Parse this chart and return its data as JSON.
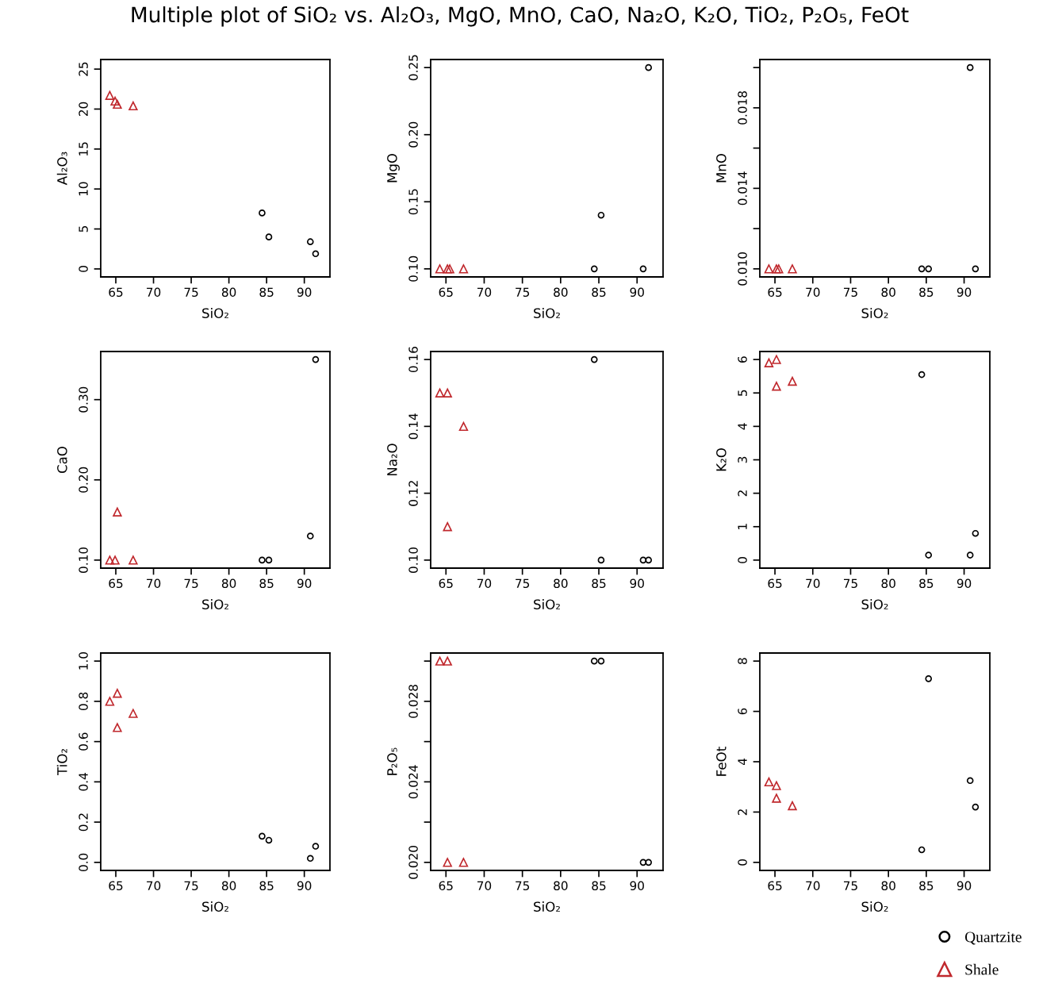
{
  "chart_data": [
    {
      "type": "scatter",
      "title": "Multiple plot of SiO₂ vs. Al₂O₃, MgO, MnO, CaO, Na₂O, K₂O, TiO₂, P₂O₅, FeOt",
      "xlabel": "SiO₂",
      "ylabel": "Al₂O₃",
      "xlim": [
        63.0,
        93.4
      ],
      "xticks": [
        65,
        70,
        75,
        80,
        85,
        90
      ],
      "ylim": [
        -1.0,
        26.2
      ],
      "yticks": [
        0,
        5,
        10,
        15,
        20,
        25
      ],
      "grid": false,
      "series": [
        {
          "color": "#000000",
          "marker": "circle",
          "x": [
            84.4,
            85.3,
            90.8,
            91.5
          ],
          "values": [
            7.0,
            4.0,
            3.4,
            1.9
          ]
        },
        {
          "color": "#c0282d",
          "marker": "triangle",
          "x": [
            64.2,
            64.9,
            65.2,
            67.3
          ],
          "values": [
            21.7,
            21.0,
            20.6,
            20.4
          ]
        }
      ]
    },
    {
      "type": "scatter",
      "xlabel": "SiO₂",
      "ylabel": "MgO",
      "xlim": [
        63.0,
        93.4
      ],
      "xticks": [
        65,
        70,
        75,
        80,
        85,
        90
      ],
      "ylim": [
        0.094,
        0.256
      ],
      "yticks": [
        {
          "value": 0.1,
          "label": "0.10"
        },
        {
          "value": 0.15,
          "label": "0.15"
        },
        {
          "value": 0.2,
          "label": "0.20"
        },
        {
          "value": 0.25,
          "label": "0.25"
        }
      ],
      "grid": false,
      "series": [
        {
          "color": "#000000",
          "marker": "circle",
          "x": [
            84.4,
            85.3,
            90.8,
            91.5
          ],
          "values": [
            0.1,
            0.14,
            0.1,
            0.25
          ]
        },
        {
          "color": "#c0282d",
          "marker": "triangle",
          "x": [
            64.2,
            65.2,
            65.5,
            67.3
          ],
          "values": [
            0.1,
            0.1,
            0.1,
            0.1
          ]
        }
      ]
    },
    {
      "type": "scatter",
      "xlabel": "SiO₂",
      "ylabel": "MnO",
      "xlim": [
        63.0,
        93.4
      ],
      "xticks": [
        65,
        70,
        75,
        80,
        85,
        90
      ],
      "ylim": [
        0.0096,
        0.0204
      ],
      "yticks": [
        {
          "value": 0.01,
          "label": "0.010"
        },
        {
          "value": 0.012,
          "label": null
        },
        {
          "value": 0.014,
          "label": "0.014"
        },
        {
          "value": 0.016,
          "label": null
        },
        {
          "value": 0.018,
          "label": "0.018"
        },
        {
          "value": 0.02,
          "label": null
        }
      ],
      "grid": false,
      "series": [
        {
          "color": "#000000",
          "marker": "circle",
          "x": [
            84.4,
            85.3,
            90.8,
            91.5
          ],
          "values": [
            0.01,
            0.01,
            0.02,
            0.01
          ]
        },
        {
          "color": "#c0282d",
          "marker": "triangle",
          "x": [
            64.2,
            65.2,
            65.5,
            67.3
          ],
          "values": [
            0.01,
            0.01,
            0.01,
            0.01
          ]
        }
      ]
    },
    {
      "type": "scatter",
      "xlabel": "SiO₂",
      "ylabel": "CaO",
      "xlim": [
        63.0,
        93.4
      ],
      "xticks": [
        65,
        70,
        75,
        80,
        85,
        90
      ],
      "ylim": [
        0.09,
        0.36
      ],
      "yticks": [
        {
          "value": 0.1,
          "label": "0.10"
        },
        {
          "value": 0.2,
          "label": "0.20"
        },
        {
          "value": 0.3,
          "label": "0.30"
        }
      ],
      "grid": false,
      "series": [
        {
          "color": "#000000",
          "marker": "circle",
          "x": [
            84.4,
            85.3,
            90.8,
            91.5
          ],
          "values": [
            0.1,
            0.1,
            0.13,
            0.35
          ]
        },
        {
          "color": "#c0282d",
          "marker": "triangle",
          "x": [
            64.2,
            64.9,
            65.2,
            67.3
          ],
          "values": [
            0.1,
            0.1,
            0.16,
            0.1
          ]
        }
      ]
    },
    {
      "type": "scatter",
      "xlabel": "SiO₂",
      "ylabel": "Na₂O",
      "xlim": [
        63.0,
        93.4
      ],
      "xticks": [
        65,
        70,
        75,
        80,
        85,
        90
      ],
      "ylim": [
        0.0976,
        0.1624
      ],
      "yticks": [
        {
          "value": 0.1,
          "label": "0.10"
        },
        {
          "value": 0.12,
          "label": "0.12"
        },
        {
          "value": 0.14,
          "label": "0.14"
        },
        {
          "value": 0.16,
          "label": "0.16"
        }
      ],
      "grid": false,
      "series": [
        {
          "color": "#000000",
          "marker": "circle",
          "x": [
            84.4,
            85.3,
            90.8,
            91.5
          ],
          "values": [
            0.16,
            0.1,
            0.1,
            0.1
          ]
        },
        {
          "color": "#c0282d",
          "marker": "triangle",
          "x": [
            64.2,
            65.2,
            65.2,
            67.3
          ],
          "values": [
            0.15,
            0.15,
            0.11,
            0.14
          ]
        }
      ]
    },
    {
      "type": "scatter",
      "xlabel": "SiO₂",
      "ylabel": "K₂O",
      "xlim": [
        63.0,
        93.4
      ],
      "xticks": [
        65,
        70,
        75,
        80,
        85,
        90
      ],
      "ylim": [
        -0.24,
        6.24
      ],
      "yticks": [
        0,
        1,
        2,
        3,
        4,
        5,
        6
      ],
      "grid": false,
      "series": [
        {
          "color": "#000000",
          "marker": "circle",
          "x": [
            84.4,
            85.3,
            90.8,
            91.5
          ],
          "values": [
            5.55,
            0.15,
            0.15,
            0.8
          ]
        },
        {
          "color": "#c0282d",
          "marker": "triangle",
          "x": [
            64.2,
            65.2,
            65.2,
            67.3
          ],
          "values": [
            5.9,
            6.0,
            5.2,
            5.35
          ]
        }
      ]
    },
    {
      "type": "scatter",
      "xlabel": "SiO₂",
      "ylabel": "TiO₂",
      "xlim": [
        63.0,
        93.4
      ],
      "xticks": [
        65,
        70,
        75,
        80,
        85,
        90
      ],
      "ylim": [
        -0.04,
        1.04
      ],
      "yticks": [
        {
          "value": 0.0,
          "label": "0.0"
        },
        {
          "value": 0.2,
          "label": "0.2"
        },
        {
          "value": 0.4,
          "label": "0.4"
        },
        {
          "value": 0.6,
          "label": "0.6"
        },
        {
          "value": 0.8,
          "label": "0.8"
        },
        {
          "value": 1.0,
          "label": "1.0"
        }
      ],
      "grid": false,
      "series": [
        {
          "color": "#000000",
          "marker": "circle",
          "x": [
            84.4,
            85.3,
            90.8,
            91.5
          ],
          "values": [
            0.13,
            0.11,
            0.02,
            0.08
          ]
        },
        {
          "color": "#c0282d",
          "marker": "triangle",
          "x": [
            64.2,
            65.2,
            65.2,
            67.3
          ],
          "values": [
            0.8,
            0.84,
            0.67,
            0.74
          ]
        }
      ]
    },
    {
      "type": "scatter",
      "xlabel": "SiO₂",
      "ylabel": "P₂O₅",
      "xlim": [
        63.0,
        93.4
      ],
      "xticks": [
        65,
        70,
        75,
        80,
        85,
        90
      ],
      "ylim": [
        0.0196,
        0.0304
      ],
      "yticks": [
        {
          "value": 0.02,
          "label": "0.020"
        },
        {
          "value": 0.022,
          "label": null
        },
        {
          "value": 0.024,
          "label": "0.024"
        },
        {
          "value": 0.026,
          "label": null
        },
        {
          "value": 0.028,
          "label": "0.028"
        },
        {
          "value": 0.03,
          "label": null
        }
      ],
      "grid": false,
      "series": [
        {
          "color": "#000000",
          "marker": "circle",
          "x": [
            84.4,
            85.3,
            90.8,
            91.5
          ],
          "values": [
            0.03,
            0.03,
            0.02,
            0.02
          ]
        },
        {
          "color": "#c0282d",
          "marker": "triangle",
          "x": [
            64.2,
            65.2,
            65.2,
            67.3
          ],
          "values": [
            0.03,
            0.03,
            0.02,
            0.02
          ]
        }
      ]
    },
    {
      "type": "scatter",
      "xlabel": "SiO₂",
      "ylabel": "FeOt",
      "xlim": [
        63.0,
        93.4
      ],
      "xticks": [
        65,
        70,
        75,
        80,
        85,
        90
      ],
      "ylim": [
        -0.32,
        8.32
      ],
      "yticks": [
        0,
        2,
        4,
        6,
        8
      ],
      "grid": false,
      "legend": "bottom right",
      "series": [
        {
          "name": "Quartzite",
          "color": "#000000",
          "marker": "circle",
          "x": [
            84.4,
            85.3,
            90.8,
            91.5
          ],
          "values": [
            0.5,
            7.3,
            3.25,
            2.2
          ]
        },
        {
          "name": "Shale",
          "color": "#c0282d",
          "marker": "triangle",
          "x": [
            64.2,
            65.2,
            65.2,
            67.3
          ],
          "values": [
            3.2,
            3.05,
            2.55,
            2.25
          ]
        }
      ]
    }
  ]
}
